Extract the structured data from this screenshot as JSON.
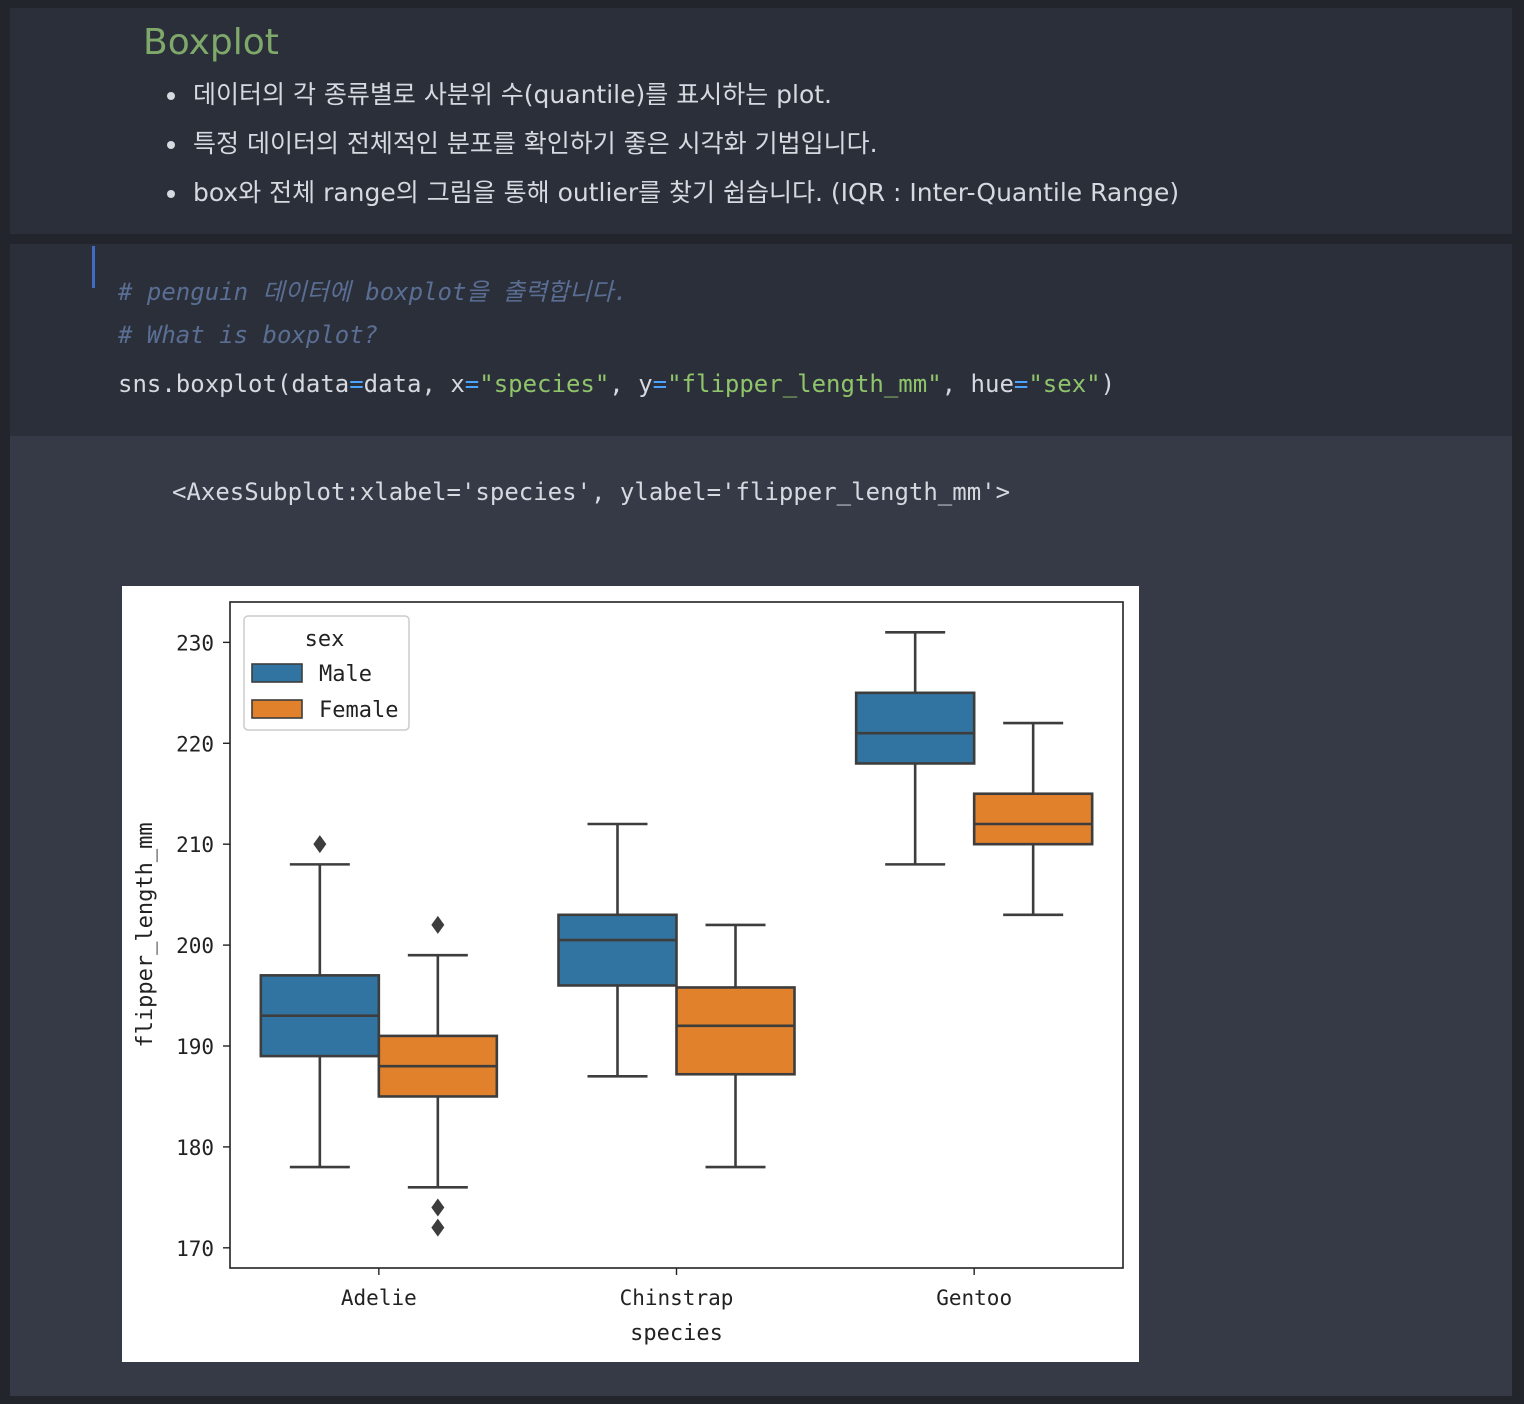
{
  "markdown": {
    "title": "Boxplot",
    "bullets": [
      "데이터의 각 종류별로 사분위 수(quantile)를 표시하는 plot.",
      "특정 데이터의 전체적인 분포를 확인하기 좋은 시각화 기법입니다.",
      "box와 전체 range의 그림을 통해 outlier를 찾기 쉽습니다. (IQR : Inter-Quantile Range)"
    ]
  },
  "code": {
    "comment1": "# penguin 데이터에 boxplot을 출력합니다.",
    "comment2": "# What is boxplot?",
    "tokens": [
      {
        "t": "sns.boxplot(data",
        "k": "plain"
      },
      {
        "t": "=",
        "k": "op"
      },
      {
        "t": "data, x",
        "k": "plain"
      },
      {
        "t": "=",
        "k": "op"
      },
      {
        "t": "\"species\"",
        "k": "str"
      },
      {
        "t": ", y",
        "k": "plain"
      },
      {
        "t": "=",
        "k": "op"
      },
      {
        "t": "\"flipper_length_mm\"",
        "k": "str"
      },
      {
        "t": ", hue",
        "k": "plain"
      },
      {
        "t": "=",
        "k": "op"
      },
      {
        "t": "\"sex\"",
        "k": "str"
      },
      {
        "t": ")",
        "k": "plain"
      }
    ]
  },
  "output": {
    "repr": "<AxesSubplot:xlabel='species', ylabel='flipper_length_mm'>"
  },
  "colors": {
    "male": "#3274a1",
    "female": "#e1812c",
    "edge": "#3d3d3d"
  },
  "chart_data": {
    "type": "boxplot",
    "xlabel": "species",
    "ylabel": "flipper_length_mm",
    "ylim": [
      168,
      234
    ],
    "yticks": [
      170,
      180,
      190,
      200,
      210,
      220,
      230
    ],
    "categories": [
      "Adelie",
      "Chinstrap",
      "Gentoo"
    ],
    "legend": {
      "title": "sex",
      "placement": "upper-left"
    },
    "series": [
      {
        "name": "Male",
        "boxes": [
          {
            "whisker_low": 178,
            "q1": 189,
            "median": 193,
            "q3": 197,
            "whisker_high": 208,
            "outliers": [
              210
            ]
          },
          {
            "whisker_low": 187,
            "q1": 196,
            "median": 200.5,
            "q3": 203,
            "whisker_high": 212,
            "outliers": []
          },
          {
            "whisker_low": 208,
            "q1": 218,
            "median": 221,
            "q3": 225,
            "whisker_high": 231,
            "outliers": []
          }
        ]
      },
      {
        "name": "Female",
        "boxes": [
          {
            "whisker_low": 176,
            "q1": 185,
            "median": 188,
            "q3": 191,
            "whisker_high": 199,
            "outliers": [
              202,
              174,
              172
            ]
          },
          {
            "whisker_low": 178,
            "q1": 187.2,
            "median": 192,
            "q3": 195.8,
            "whisker_high": 202,
            "outliers": []
          },
          {
            "whisker_low": 203,
            "q1": 210,
            "median": 212,
            "q3": 215,
            "whisker_high": 222,
            "outliers": []
          }
        ]
      }
    ]
  }
}
